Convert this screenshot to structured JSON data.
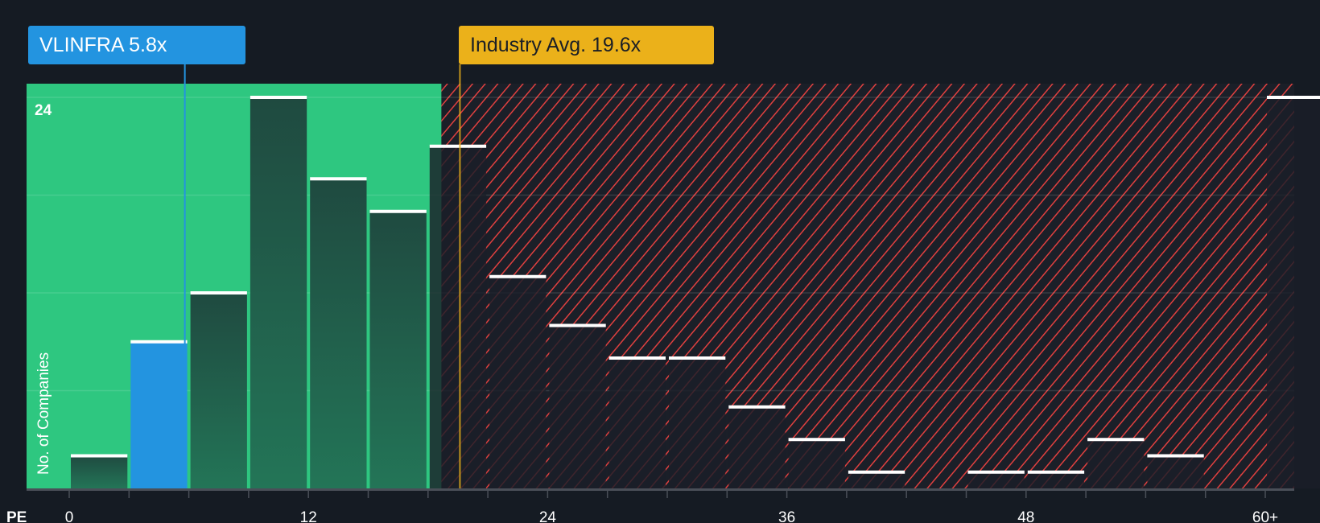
{
  "chart_data": {
    "type": "bar",
    "title": "",
    "xlabel": "PE",
    "ylabel": "No. of Companies",
    "bin_width": 3,
    "bins_start": [
      0,
      3,
      6,
      9,
      12,
      15,
      18,
      21,
      24,
      27,
      30,
      33,
      36,
      39,
      42,
      45,
      48,
      51,
      54,
      57,
      60
    ],
    "values": [
      2,
      9,
      12,
      24,
      19,
      17,
      21,
      13,
      10,
      8,
      8,
      5,
      3,
      1,
      0,
      1,
      1,
      3,
      2,
      0,
      24
    ],
    "x_ticks": [
      "0",
      "12",
      "24",
      "36",
      "48",
      "60+"
    ],
    "x_tick_values": [
      0,
      12,
      24,
      36,
      48,
      60
    ],
    "y_ticks": [
      "24"
    ],
    "ylim": [
      0,
      24
    ],
    "gridlines_y": [
      6,
      12,
      18,
      24
    ],
    "company": {
      "label": "VLINFRA 5.8x",
      "value": 5.8,
      "highlight_bin": 1
    },
    "industry": {
      "label": "Industry Avg. 19.6x",
      "value": 19.6
    },
    "colors": {
      "fair": "#2ec780",
      "overvalued": "#e0403f",
      "company": "#2394e0",
      "industry": "#ebb11a",
      "background": "#151b23"
    }
  }
}
